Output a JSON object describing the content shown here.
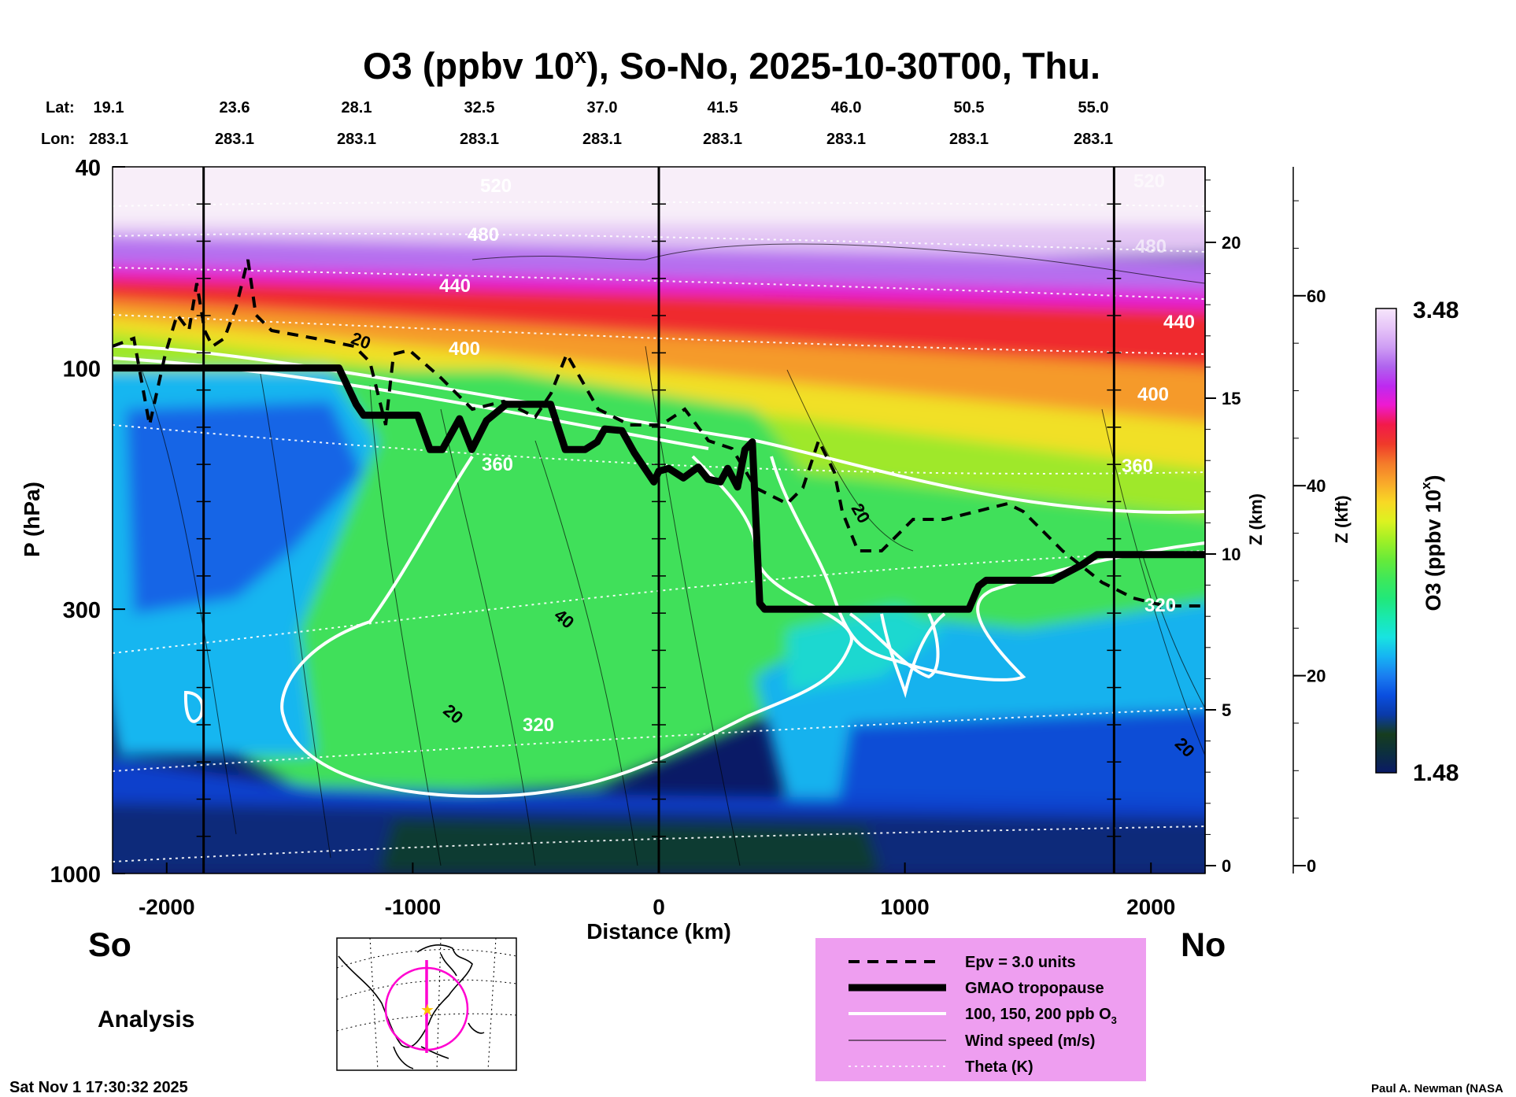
{
  "chart_data": {
    "type": "heatmap",
    "title_main": "O3 (ppbv 10",
    "title_sup": "x",
    "title_rest": "), So-No, 2025-10-30T00, Thu.",
    "lat_label": "Lat:",
    "lon_label": "Lon:",
    "lat_ticks": [
      "19.1",
      "23.6",
      "28.1",
      "32.5",
      "37.0",
      "41.5",
      "46.0",
      "50.5",
      "55.0"
    ],
    "lon_ticks": [
      "283.1",
      "283.1",
      "283.1",
      "283.1",
      "283.1",
      "283.1",
      "283.1",
      "283.1",
      "283.1"
    ],
    "xlabel": "Distance (km)",
    "x_ticks": [
      -2000,
      -1000,
      0,
      1000,
      2000
    ],
    "x_tick_labels": [
      "-2000",
      "-1000",
      "0",
      "1000",
      "2000"
    ],
    "xlim": [
      -2220,
      2220
    ],
    "ylabel": "P (hPa)",
    "y_ticks": [
      40,
      100,
      300,
      1000
    ],
    "y_tick_labels": [
      "40",
      "100",
      "300",
      "1000"
    ],
    "ylim": [
      1000,
      40
    ],
    "z_km_label": "Z (km)",
    "z_km_ticks": [
      0,
      5,
      10,
      15,
      20
    ],
    "z_km_tick_labels": [
      "0",
      "5",
      "10",
      "15",
      "20"
    ],
    "z_kft_label": "Z (kft)",
    "z_kft_ticks": [
      0,
      20,
      40,
      60
    ],
    "z_kft_tick_labels": [
      "0",
      "20",
      "40",
      "60"
    ],
    "colorbar_label_main": "O3 (ppbv 10",
    "colorbar_label_sup": "x",
    "colorbar_label_end": ")",
    "colorbar_max": "3.48",
    "colorbar_min": "1.48",
    "colorbar_colors": [
      "#0a1a66",
      "#0c2f3f",
      "#163d1e",
      "#0a3aa8",
      "#0a4fe0",
      "#1a7df0",
      "#16b3f3",
      "#18e3e0",
      "#19e9b0",
      "#21e87a",
      "#3ee85a",
      "#66ea3a",
      "#9ff026",
      "#ddf220",
      "#f8d825",
      "#f9a82a",
      "#f47a2a",
      "#ef3a2a",
      "#f21a4a",
      "#ee1ad0",
      "#bd2af0",
      "#b064ee",
      "#cf9ef4",
      "#e6c4f8",
      "#f6e6fb"
    ],
    "south_label": "So",
    "north_label": "No",
    "analysis_label": "Analysis",
    "timestamp": "Sat Nov  1 17:30:32 2025",
    "credit": "Paul A. Newman (NASA",
    "legend": {
      "epv": "Epv = 3.0 units",
      "tropopause": "GMAO tropopause",
      "ozone_prefix": "100, 150, 200 ppb O",
      "ozone_sub": "3",
      "wind": "Wind speed (m/s)",
      "theta": "Theta (K)"
    },
    "theta_labels": [
      "520",
      "480",
      "440",
      "400",
      "360",
      "320",
      "480",
      "440",
      "400",
      "360",
      "320",
      "520"
    ],
    "wind_labels": [
      "20",
      "40",
      "20",
      "20",
      "20"
    ],
    "tropopause": {
      "distance_km": [
        -2220,
        -1300,
        -1230,
        -1200,
        -980,
        -930,
        -880,
        -810,
        -760,
        -700,
        -620,
        -440,
        -380,
        -300,
        -250,
        -220,
        -150,
        -100,
        -20,
        0,
        40,
        100,
        160,
        200,
        250,
        280,
        320,
        350,
        380,
        410,
        430,
        480,
        520,
        640,
        800,
        1000,
        1260,
        1300,
        1330,
        1420,
        1600,
        1720,
        1780,
        2220
      ],
      "pressure_hpa": [
        100,
        100,
        118,
        124,
        124,
        145,
        145,
        126,
        145,
        127,
        118,
        118,
        145,
        145,
        140,
        132,
        133,
        147,
        168,
        160,
        158,
        165,
        157,
        166,
        168,
        158,
        172,
        145,
        140,
        292,
        300,
        300,
        300,
        300,
        300,
        300,
        300,
        270,
        263,
        263,
        263,
        245,
        234,
        234
      ]
    }
  }
}
